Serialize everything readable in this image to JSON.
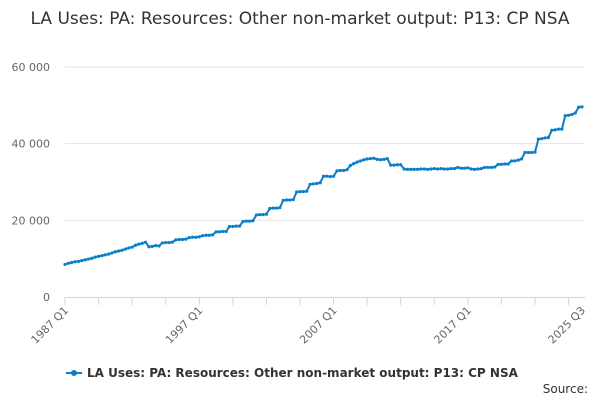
{
  "chart_data": {
    "type": "line",
    "title": "LA Uses: PA: Resources: Other non-market output: P13: CP NSA",
    "xlabel": "",
    "ylabel": "",
    "x_start": "1987 Q1",
    "x_end": "2025 Q3",
    "x_tick_labels": [
      "1987 Q1",
      "1997 Q1",
      "2007 Q1",
      "2017 Q1",
      "2025 Q3"
    ],
    "y_tick_labels": [
      "0",
      "20 000",
      "40 000",
      "60 000"
    ],
    "ylim": [
      0,
      60000
    ],
    "grid": true,
    "legend_position": "bottom",
    "color": "#0a7fc9",
    "series": [
      {
        "name": "LA Uses: PA: Resources: Other non-market output: P13: CP NSA",
        "values": [
          8500,
          8800,
          9000,
          9200,
          9300,
          9500,
          9700,
          9900,
          10100,
          10400,
          10600,
          10800,
          11000,
          11200,
          11500,
          11800,
          12000,
          12200,
          12500,
          12800,
          13000,
          13500,
          13800,
          14000,
          14300,
          13100,
          13200,
          13400,
          13300,
          14100,
          14200,
          14200,
          14300,
          14900,
          15000,
          15000,
          15100,
          15500,
          15600,
          15600,
          15700,
          16000,
          16100,
          16100,
          16200,
          17000,
          17000,
          17100,
          17100,
          18400,
          18400,
          18500,
          18500,
          19700,
          19800,
          19800,
          19900,
          21400,
          21500,
          21500,
          21600,
          23100,
          23200,
          23200,
          23300,
          25200,
          25300,
          25300,
          25400,
          27400,
          27500,
          27500,
          27600,
          29400,
          29500,
          29600,
          29800,
          31500,
          31500,
          31400,
          31500,
          32900,
          33000,
          33000,
          33200,
          34300,
          34800,
          35200,
          35500,
          35800,
          36000,
          36100,
          36200,
          35900,
          35800,
          35900,
          36100,
          34400,
          34400,
          34500,
          34500,
          33400,
          33300,
          33300,
          33300,
          33300,
          33400,
          33400,
          33300,
          33400,
          33500,
          33400,
          33500,
          33400,
          33400,
          33500,
          33500,
          33800,
          33600,
          33600,
          33700,
          33400,
          33300,
          33400,
          33500,
          33800,
          33800,
          33800,
          33900,
          34600,
          34600,
          34700,
          34700,
          35500,
          35500,
          35700,
          36000,
          37700,
          37700,
          37700,
          37800,
          41200,
          41300,
          41500,
          41600,
          43500,
          43600,
          43800,
          43800,
          47300,
          47400,
          47600,
          48000,
          49500,
          49600
        ]
      }
    ]
  },
  "source_label": "Source:"
}
